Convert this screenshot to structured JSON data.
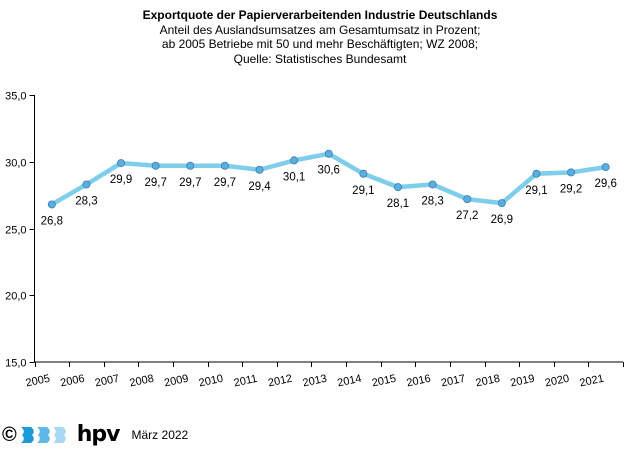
{
  "chart_data": {
    "type": "line",
    "title": "Exportquote der Papierverarbeitenden Industrie Deutschlands",
    "subtitle": [
      "Anteil des Auslandsumsatzes am Gesamtumsatz in Prozent;",
      "ab 2005 Betriebe mit 50 und mehr Beschäftigten; WZ 2008;",
      "Quelle: Statistisches Bundesamt"
    ],
    "xlabel": "",
    "ylabel": "",
    "categories": [
      "2005",
      "2006",
      "2007",
      "2008",
      "2009",
      "2010",
      "2011",
      "2012",
      "2013",
      "2014",
      "2015",
      "2016",
      "2017",
      "2018",
      "2019",
      "2020",
      "2021"
    ],
    "series": [
      {
        "name": "Exportquote",
        "values": [
          26.8,
          28.3,
          29.9,
          29.7,
          29.7,
          29.7,
          29.4,
          30.1,
          30.6,
          29.1,
          28.1,
          28.3,
          27.2,
          26.9,
          29.1,
          29.2,
          29.6
        ],
        "labels": [
          "26,8",
          "28,3",
          "29,9",
          "29,7",
          "29,7",
          "29,7",
          "29,4",
          "30,1",
          "30,6",
          "29,1",
          "28,1",
          "28,3",
          "27,2",
          "26,9",
          "29,1",
          "29,2",
          "29,6"
        ],
        "color": "#7dcdeb",
        "marker_color": "#5aaee0"
      }
    ],
    "ylim": [
      15,
      35
    ],
    "yticks": [
      "15,0",
      "20,0",
      "25,0",
      "30,0",
      "35,0"
    ],
    "ytick_values": [
      15,
      20,
      25,
      30,
      35
    ],
    "grid": false,
    "legend": "none"
  },
  "footer": {
    "copyright": "©",
    "logo_text": "hpv",
    "date": "März 2022"
  },
  "colors": {
    "logo_wave_1": "#1e9bd7",
    "logo_wave_2": "#5db8e6",
    "logo_wave_3": "#a8d8f2"
  }
}
